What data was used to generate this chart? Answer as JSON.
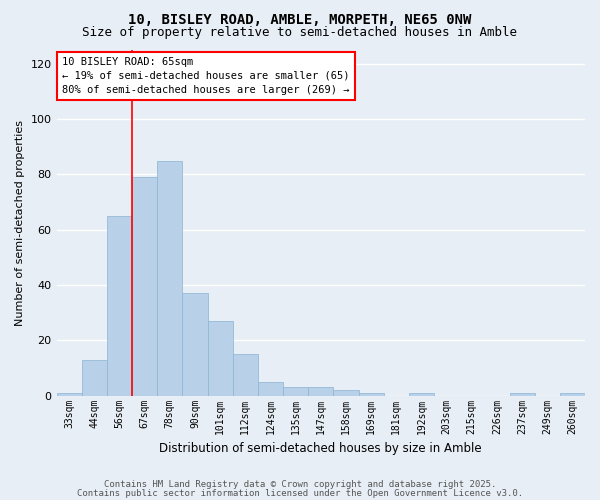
{
  "title1": "10, BISLEY ROAD, AMBLE, MORPETH, NE65 0NW",
  "title2": "Size of property relative to semi-detached houses in Amble",
  "xlabel": "Distribution of semi-detached houses by size in Amble",
  "ylabel": "Number of semi-detached properties",
  "categories": [
    "33sqm",
    "44sqm",
    "56sqm",
    "67sqm",
    "78sqm",
    "90sqm",
    "101sqm",
    "112sqm",
    "124sqm",
    "135sqm",
    "147sqm",
    "158sqm",
    "169sqm",
    "181sqm",
    "192sqm",
    "203sqm",
    "215sqm",
    "226sqm",
    "237sqm",
    "249sqm",
    "260sqm"
  ],
  "values": [
    1,
    13,
    65,
    79,
    85,
    37,
    27,
    15,
    5,
    3,
    3,
    2,
    1,
    0,
    1,
    0,
    0,
    0,
    1,
    0,
    1
  ],
  "bar_color": "#b8d0e8",
  "bar_edge_color": "#8ab4d4",
  "red_line_index": 3,
  "annotation_text_line1": "10 BISLEY ROAD: 65sqm",
  "annotation_text_line2": "← 19% of semi-detached houses are smaller (65)",
  "annotation_text_line3": "80% of semi-detached houses are larger (269) →",
  "ylim": [
    0,
    125
  ],
  "yticks": [
    0,
    20,
    40,
    60,
    80,
    100,
    120
  ],
  "footer1": "Contains HM Land Registry data © Crown copyright and database right 2025.",
  "footer2": "Contains public sector information licensed under the Open Government Licence v3.0.",
  "background_color": "#e8eef5",
  "plot_background": "#e8eef5",
  "grid_color": "#ffffff",
  "title1_fontsize": 10,
  "title2_fontsize": 9
}
